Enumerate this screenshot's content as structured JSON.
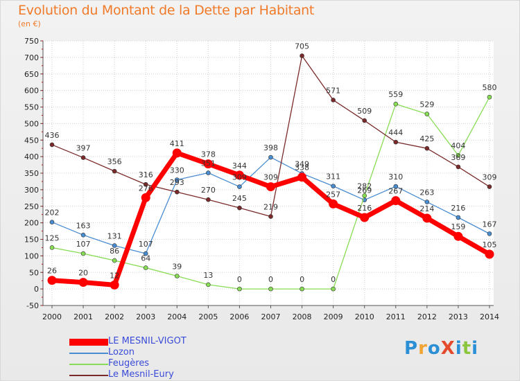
{
  "title": "Evolution du Montant de la Dette par Habitant",
  "subtitle": "(en €)",
  "brand": {
    "text": "ProXiti",
    "colors": [
      "#2b8fd6",
      "#f2a534",
      "#2b8fd6",
      "#e44a2c",
      "#2b8fd6",
      "#8cc63f",
      "#2b8fd6"
    ]
  },
  "chart_data": {
    "type": "line",
    "title": "Evolution du Montant de la Dette par Habitant",
    "ylabel": "(en €)",
    "xlabel": "",
    "ylim": [
      -50,
      750
    ],
    "yticks": [
      -50,
      0,
      50,
      100,
      150,
      200,
      250,
      300,
      350,
      400,
      450,
      500,
      550,
      600,
      650,
      700,
      750
    ],
    "x": [
      "2000",
      "2001",
      "2002",
      "2003",
      "2004",
      "2005",
      "2006",
      "2007",
      "2008",
      "2009",
      "2010",
      "2011",
      "2012",
      "2013",
      "2014"
    ],
    "series": [
      {
        "name": "LE MESNIL-VIGOT",
        "color": "#ff0000",
        "emphasis": true,
        "values": [
          26,
          20,
          12,
          276,
          411,
          378,
          344,
          309,
          338,
          257,
          216,
          267,
          214,
          159,
          105
        ],
        "labels": [
          "26",
          "20",
          "12",
          "276",
          "411",
          "378",
          "344",
          "309",
          "338",
          "257",
          "216",
          "267",
          "214",
          "159",
          "105"
        ]
      },
      {
        "name": "Lozon",
        "color": "#4a8cd0",
        "emphasis": false,
        "values": [
          202,
          163,
          131,
          107,
          330,
          351,
          309,
          398,
          349,
          311,
          269,
          310,
          263,
          216,
          167
        ],
        "labels": [
          "202",
          "163",
          "131",
          "107",
          "330",
          "351",
          "309",
          "398",
          "349",
          "311",
          "269",
          "310",
          "263",
          "216",
          "167"
        ]
      },
      {
        "name": "Feugères",
        "color": "#88dd55",
        "emphasis": false,
        "values": [
          125,
          107,
          86,
          64,
          39,
          13,
          0,
          0,
          0,
          0,
          282,
          559,
          529,
          404,
          580
        ],
        "labels": [
          "125",
          "107",
          "86",
          "64",
          "39",
          "13",
          "0",
          "0",
          "0",
          "0",
          "282",
          "559",
          "529",
          "404",
          "580"
        ]
      },
      {
        "name": "Le Mesnil-Eury",
        "color": "#7a2a2a",
        "emphasis": false,
        "values": [
          436,
          397,
          356,
          316,
          293,
          270,
          245,
          219,
          705,
          571,
          509,
          444,
          425,
          369,
          309
        ],
        "labels": [
          "436",
          "397",
          "356",
          "316",
          "293",
          "270",
          "245",
          "219",
          "705",
          "571",
          "509",
          "444",
          "425",
          "369",
          "309"
        ]
      }
    ],
    "legend_position": "bottom-left",
    "grid": true
  }
}
